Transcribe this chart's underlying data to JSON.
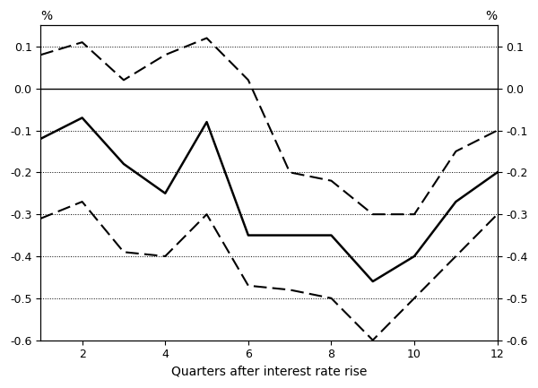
{
  "quarters": [
    1,
    2,
    3,
    4,
    5,
    6,
    7,
    8,
    9,
    10,
    11,
    12
  ],
  "solid_line": [
    -0.12,
    -0.07,
    -0.18,
    -0.25,
    -0.08,
    -0.35,
    -0.35,
    -0.35,
    -0.46,
    -0.4,
    -0.27,
    -0.2
  ],
  "upper_dashed": [
    0.08,
    0.11,
    0.02,
    0.08,
    0.12,
    0.02,
    -0.2,
    -0.22,
    -0.3,
    -0.3,
    -0.15,
    -0.1
  ],
  "lower_dashed": [
    -0.31,
    -0.27,
    -0.39,
    -0.4,
    -0.3,
    -0.47,
    -0.48,
    -0.5,
    -0.6,
    -0.5,
    -0.4,
    -0.3
  ],
  "ylim": [
    -0.6,
    0.15
  ],
  "yticks": [
    -0.6,
    -0.5,
    -0.4,
    -0.3,
    -0.2,
    -0.1,
    0.0,
    0.1
  ],
  "xticks": [
    2,
    4,
    6,
    8,
    10,
    12
  ],
  "xlabel": "Quarters after interest rate rise",
  "pct_label": "%",
  "background_color": "#ffffff",
  "line_color": "#000000"
}
